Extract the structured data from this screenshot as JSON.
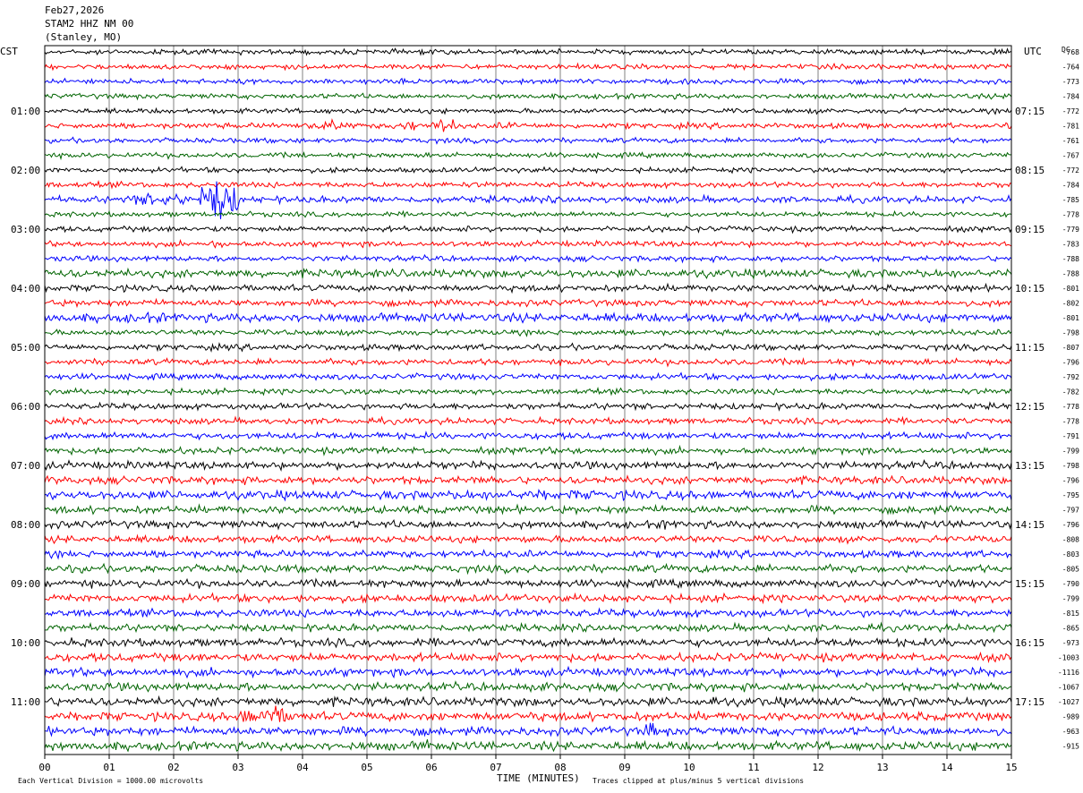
{
  "header": {
    "date": "Feb27,2026",
    "station": "STAM2 HHZ NM 00",
    "location": "(Stanley, MO)"
  },
  "left_axis_label": "CST",
  "right_axis_label": "UTC",
  "dc_label": "DC",
  "footer": {
    "scale_note": "Each Vertical Division = 1000.00 microvolts",
    "clip_note": "Traces clipped at plus/minus 5 vertical divisions"
  },
  "colors": {
    "trace_cycle": [
      "#000000",
      "#ff0000",
      "#0000ff",
      "#006400"
    ],
    "grid": "#808080",
    "frame": "#000000"
  },
  "chart_data": {
    "type": "line",
    "xlabel": "TIME (MINUTES)",
    "x_ticks": [
      "00",
      "01",
      "02",
      "03",
      "04",
      "05",
      "06",
      "07",
      "08",
      "09",
      "10",
      "11",
      "12",
      "13",
      "14",
      "15"
    ],
    "xlim": [
      0,
      15
    ],
    "trace_count": 48,
    "left_hour_labels": [
      {
        "trace": 4,
        "label": "01:00"
      },
      {
        "trace": 8,
        "label": "02:00"
      },
      {
        "trace": 12,
        "label": "03:00"
      },
      {
        "trace": 16,
        "label": "04:00"
      },
      {
        "trace": 20,
        "label": "05:00"
      },
      {
        "trace": 24,
        "label": "06:00"
      },
      {
        "trace": 28,
        "label": "07:00"
      },
      {
        "trace": 32,
        "label": "08:00"
      },
      {
        "trace": 36,
        "label": "09:00"
      },
      {
        "trace": 40,
        "label": "10:00"
      },
      {
        "trace": 44,
        "label": "11:00"
      }
    ],
    "right_hour_labels": [
      {
        "trace": 4,
        "label": "07:15"
      },
      {
        "trace": 8,
        "label": "08:15"
      },
      {
        "trace": 12,
        "label": "09:15"
      },
      {
        "trace": 16,
        "label": "10:15"
      },
      {
        "trace": 20,
        "label": "11:15"
      },
      {
        "trace": 24,
        "label": "12:15"
      },
      {
        "trace": 28,
        "label": "13:15"
      },
      {
        "trace": 32,
        "label": "14:15"
      },
      {
        "trace": 36,
        "label": "15:15"
      },
      {
        "trace": 40,
        "label": "16:15"
      },
      {
        "trace": 44,
        "label": "17:15"
      }
    ],
    "dc_offsets": [
      "-768",
      "-764",
      "-773",
      "-784",
      "-772",
      "-781",
      "-761",
      "-767",
      "-772",
      "-784",
      "-785",
      "-778",
      "-779",
      "-783",
      "-788",
      "-788",
      "-801",
      "-802",
      "-801",
      "-798",
      "-807",
      "-796",
      "-792",
      "-782",
      "-778",
      "-778",
      "-791",
      "-799",
      "-798",
      "-796",
      "-795",
      "-797",
      "-796",
      "-808",
      "-803",
      "-805",
      "-790",
      "-799",
      "-815",
      "-865",
      "-973",
      "-1003",
      "-1116",
      "-1067",
      "-1027",
      "-989",
      "-963",
      "-915"
    ],
    "trace_noise": [
      2.0,
      2.0,
      2.0,
      2.0,
      2.0,
      2.2,
      2.0,
      2.0,
      2.0,
      2.2,
      2.6,
      2.0,
      2.2,
      2.2,
      2.2,
      3.2,
      2.6,
      2.6,
      3.4,
      2.2,
      2.4,
      2.4,
      2.4,
      2.2,
      2.4,
      2.4,
      2.6,
      2.6,
      3.0,
      3.0,
      3.4,
      3.0,
      3.0,
      2.8,
      2.8,
      3.0,
      3.0,
      3.0,
      3.0,
      2.8,
      3.2,
      3.2,
      3.2,
      3.2,
      3.4,
      3.4,
      3.4,
      3.4
    ],
    "events": [
      {
        "trace": 5,
        "start_min": 4.0,
        "end_min": 4.8,
        "amplitude": 5
      },
      {
        "trace": 5,
        "start_min": 5.4,
        "end_min": 5.8,
        "amplitude": 6
      },
      {
        "trace": 5,
        "start_min": 6.0,
        "end_min": 6.4,
        "amplitude": 7
      },
      {
        "trace": 5,
        "start_min": 7.0,
        "end_min": 7.4,
        "amplitude": 4
      },
      {
        "trace": 10,
        "start_min": 1.2,
        "end_min": 2.4,
        "amplitude": 6
      },
      {
        "trace": 10,
        "start_min": 2.4,
        "end_min": 3.0,
        "amplitude": 18
      },
      {
        "trace": 13,
        "start_min": 2.55,
        "end_min": 2.65,
        "amplitude": 8
      },
      {
        "trace": 18,
        "start_min": 0.0,
        "end_min": 3.2,
        "amplitude": 4
      },
      {
        "trace": 30,
        "start_min": 0.6,
        "end_min": 15.0,
        "amplitude": 4
      },
      {
        "trace": 32,
        "start_min": 9.6,
        "end_min": 9.7,
        "amplitude": 7
      },
      {
        "trace": 43,
        "start_min": 7.3,
        "end_min": 7.6,
        "amplitude": 5
      },
      {
        "trace": 44,
        "start_min": 10.2,
        "end_min": 10.6,
        "amplitude": 5
      },
      {
        "trace": 45,
        "start_min": 3.0,
        "end_min": 3.9,
        "amplitude": 10
      },
      {
        "trace": 45,
        "start_min": 7.4,
        "end_min": 7.8,
        "amplitude": 5
      },
      {
        "trace": 46,
        "start_min": 9.3,
        "end_min": 9.5,
        "amplitude": 9
      },
      {
        "trace": 47,
        "start_min": 5.7,
        "end_min": 6.2,
        "amplitude": 5
      }
    ]
  }
}
